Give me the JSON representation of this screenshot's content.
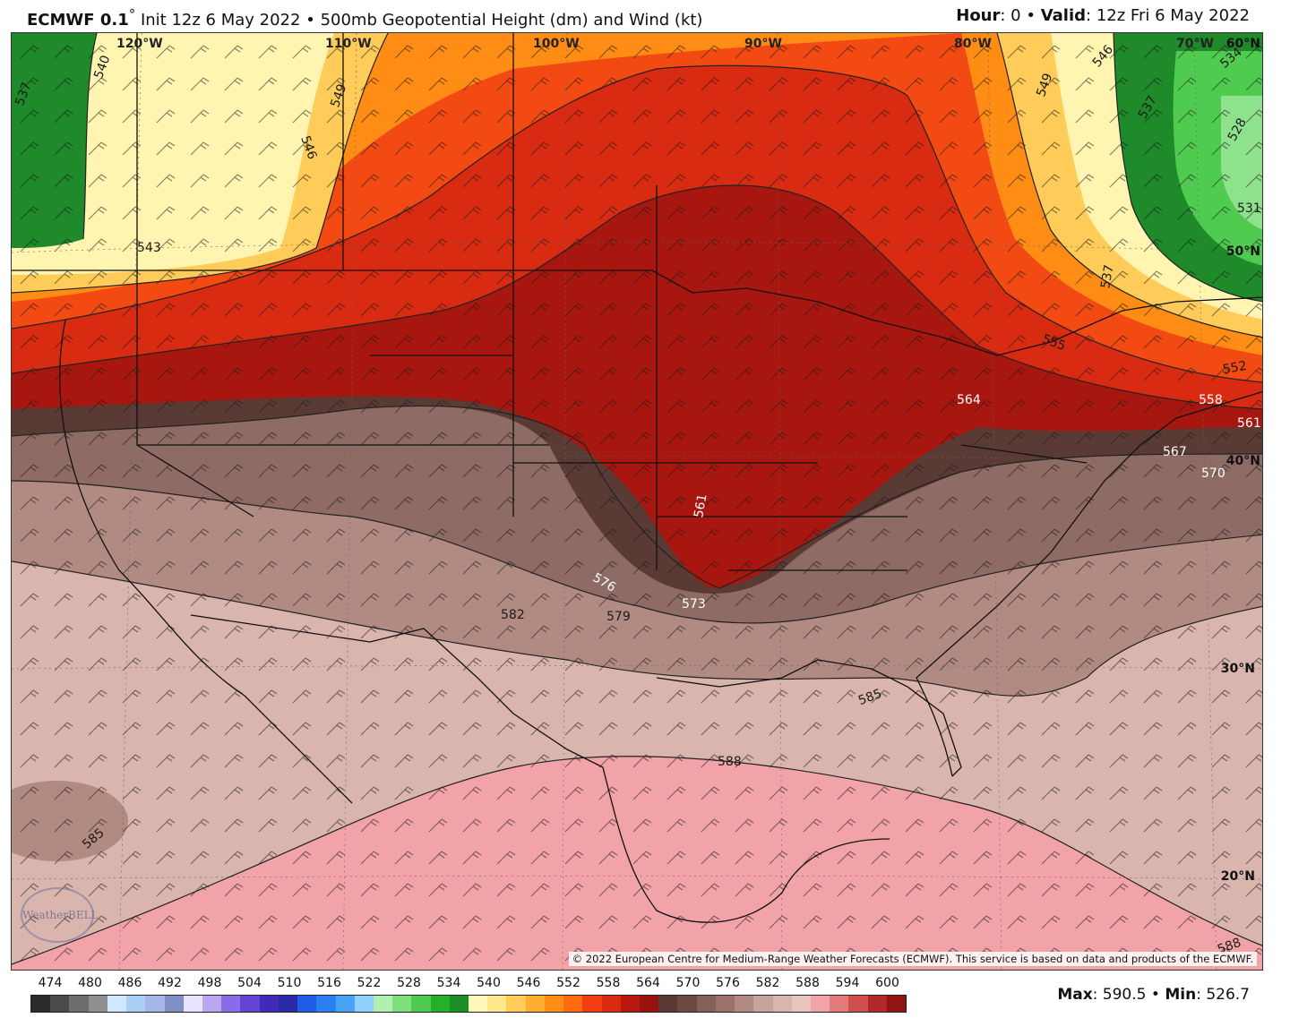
{
  "header": {
    "model": "ECMWF 0.1",
    "degree_symbol": "°",
    "init": "Init 12z 6 May 2022",
    "separator": "•",
    "product": "500mb Geopotential Height (dm) and Wind (kt)",
    "hour_label": "Hour",
    "hour_value": ": 0",
    "valid_label": "Valid",
    "valid_value": ": 12z Fri 6 May 2022"
  },
  "map": {
    "longitude_labels": [
      "120°W",
      "110°W",
      "100°W",
      "90°W",
      "80°W",
      "70°W"
    ],
    "latitude_labels": [
      "60°N",
      "50°N",
      "40°N",
      "30°N",
      "20°N"
    ],
    "contour_labels": [
      "537",
      "540",
      "543",
      "546",
      "549",
      "546",
      "549",
      "537",
      "534",
      "528",
      "531",
      "537",
      "555",
      "564",
      "558",
      "552",
      "561",
      "567",
      "570",
      "561",
      "576",
      "573",
      "579",
      "582",
      "585",
      "588",
      "585",
      "588"
    ],
    "copyright": "© 2022 European Centre for Medium-Range Weather Forecasts (ECMWF). This service is based on data and products of the ECMWF.",
    "logo_text": "WeatherBELL",
    "colors": {
      "deep_green": "#1f8a2a",
      "light_green": "#7de07a",
      "pale_yellow": "#fff4b0",
      "orange": "#ff8a1a",
      "red": "#e83015",
      "dark_red": "#a8170f",
      "dark_brown": "#5a3a34",
      "mid_brown": "#9b7169",
      "light_brown": "#d9b5ad",
      "pink": "#f2a3a8"
    }
  },
  "colorbar": {
    "labels": [
      "474",
      "480",
      "486",
      "492",
      "498",
      "504",
      "510",
      "516",
      "522",
      "528",
      "534",
      "540",
      "546",
      "552",
      "558",
      "564",
      "570",
      "576",
      "582",
      "588",
      "594",
      "600"
    ],
    "colors": [
      "#2b2b2b",
      "#4a4a4a",
      "#6d6d6d",
      "#8f8f8f",
      "#cfe7ff",
      "#a9d0f5",
      "#a6b6e8",
      "#7f8fc4",
      "#e9e3ff",
      "#b9a8f0",
      "#8a6ce8",
      "#6244d2",
      "#3e2cb8",
      "#2a2aa6",
      "#1f5ce6",
      "#2b80f0",
      "#4aa4f5",
      "#8fd0ff",
      "#b2f0b2",
      "#7de07a",
      "#4fcc4f",
      "#25b02a",
      "#1b8e24",
      "#fff7b8",
      "#ffe68a",
      "#ffcc5a",
      "#ffad2e",
      "#ff8c14",
      "#ff6a0f",
      "#f23d12",
      "#d92a12",
      "#b81810",
      "#9a120e",
      "#5a3a34",
      "#6f4a43",
      "#846058",
      "#9b7169",
      "#b18a82",
      "#c6a39b",
      "#d9b5ad",
      "#e8c4bf",
      "#f2a3a8",
      "#e27a7c",
      "#cf4e4e",
      "#b32828",
      "#8f1414"
    ]
  },
  "stats": {
    "max_label": "Max",
    "max_value": ": 590.5",
    "min_label": "Min",
    "min_value": ": 526.7"
  }
}
